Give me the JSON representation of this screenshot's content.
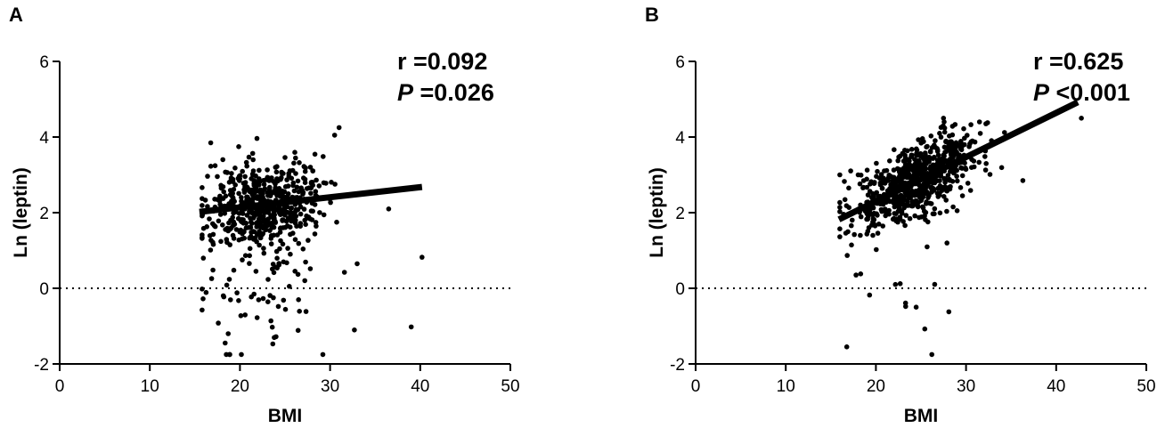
{
  "chart_data": [
    {
      "panel": "A",
      "type": "scatter",
      "xlabel": "BMI",
      "ylabel": "Ln (leptin)",
      "xlim": [
        0,
        50
      ],
      "ylim": [
        -2,
        6
      ],
      "xticks": [
        "0",
        "10",
        "20",
        "30",
        "40",
        "50"
      ],
      "yticks": [
        "-2",
        "0",
        "2",
        "4",
        "6"
      ],
      "reference_line_y": 0,
      "annotation": {
        "r_label": "r =0.092",
        "p_symbol": "P",
        "p_value": " =0.026"
      },
      "fit_line": {
        "x": [
          15.5,
          40.2
        ],
        "y": [
          2.02,
          2.68
        ]
      },
      "points_spec": {
        "count": 620,
        "x_mean": 22.5,
        "x_sd": 3.2,
        "x_min": 15.8,
        "x_max": 40.2,
        "slope": 0.027,
        "intercept": 1.6,
        "noise_sd": 0.55,
        "outlier_fraction": 0.12,
        "seed": 11
      },
      "extra_points": [
        [
          36.5,
          2.1
        ],
        [
          40.2,
          0.82
        ],
        [
          39,
          -1.02
        ],
        [
          29.2,
          -1.75
        ],
        [
          33,
          0.65
        ],
        [
          31,
          4.25
        ],
        [
          30.5,
          4.05
        ],
        [
          17.6,
          -0.92
        ],
        [
          18.7,
          -1.2
        ],
        [
          23.8,
          -1.3
        ],
        [
          26.5,
          -0.3
        ],
        [
          32.7,
          -1.1
        ]
      ],
      "grid": false
    },
    {
      "panel": "B",
      "type": "scatter",
      "xlabel": "BMI",
      "ylabel": "Ln (leptin)",
      "xlim": [
        0,
        50
      ],
      "ylim": [
        -2,
        6
      ],
      "xticks": [
        "0",
        "10",
        "20",
        "30",
        "40",
        "50"
      ],
      "yticks": [
        "-2",
        "0",
        "2",
        "4",
        "6"
      ],
      "reference_line_y": 0,
      "annotation": {
        "r_label": "r =0.625",
        "p_symbol": "P",
        "p_value": " <0.001"
      },
      "fit_line": {
        "x": [
          15.9,
          42.4
        ],
        "y": [
          1.82,
          4.92
        ]
      },
      "points_spec": {
        "count": 760,
        "x_mean": 23.8,
        "x_sd": 3.3,
        "x_min": 16.0,
        "x_max": 36.5,
        "slope": 0.117,
        "intercept": 0.0,
        "noise_sd": 0.42,
        "outlier_fraction": 0.02,
        "seed": 23
      },
      "extra_points": [
        [
          42.8,
          4.5
        ],
        [
          36.3,
          2.85
        ],
        [
          16.0,
          3.0
        ],
        [
          19.3,
          -0.18
        ],
        [
          23.3,
          -0.48
        ],
        [
          17.8,
          0.35
        ],
        [
          27.5,
          4.5
        ]
      ],
      "grid": false
    }
  ]
}
